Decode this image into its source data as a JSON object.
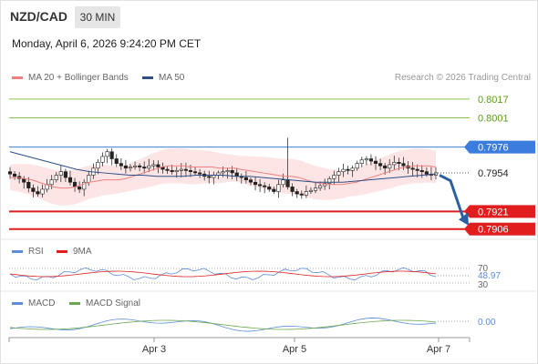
{
  "header": {
    "pair": "NZD/CAD",
    "timeframe": "30 MIN",
    "datetime": "Monday, April 6, 2026 9:24:20 PM CET"
  },
  "legend": {
    "ma20_bb": "MA 20 + Bollinger Bands",
    "ma50": "MA 50",
    "copyright": "Research © 2026 Trading Central",
    "rsi": "RSI",
    "ma9": "9MA",
    "macd": "MACD",
    "macd_signal": "MACD Signal"
  },
  "colors": {
    "ma20": "#f08080",
    "ma50": "#2c4f86",
    "bollinger_fill": "#fde0e0",
    "resistance_green": "#8bc34a",
    "pivot_blue": "#3b7ddd",
    "support_red": "#e11d1d",
    "arrow": "#2c5fa0",
    "rsi": "#5b8cd8",
    "macd": "#5b8cd8",
    "macd_signal": "#6aa84f"
  },
  "chart_data": {
    "type": "candlestick",
    "x_ticks": [
      "Apr 3",
      "Apr 5",
      "Apr 7"
    ],
    "price_range": [
      0.7898,
      0.8027
    ],
    "levels": [
      {
        "value": 0.8017,
        "label": "0.8017",
        "kind": "resistance",
        "color": "#8bc34a"
      },
      {
        "value": 0.8001,
        "label": "0.8001",
        "kind": "resistance",
        "color": "#8bc34a"
      },
      {
        "value": 0.7976,
        "label": "0.7976",
        "kind": "pivot",
        "color": "#3b7ddd"
      },
      {
        "value": 0.7954,
        "label": "0.7954",
        "kind": "last",
        "color": "#333333"
      },
      {
        "value": 0.7921,
        "label": "0.7921",
        "kind": "support",
        "color": "#e11d1d"
      },
      {
        "value": 0.7906,
        "label": "0.7906",
        "kind": "support",
        "color": "#e11d1d"
      }
    ],
    "close_series": [
      0.7953,
      0.7951,
      0.7949,
      0.7946,
      0.7941,
      0.7938,
      0.7936,
      0.794,
      0.7944,
      0.7948,
      0.7952,
      0.7955,
      0.795,
      0.7946,
      0.7942,
      0.794,
      0.7946,
      0.7952,
      0.7958,
      0.7963,
      0.7968,
      0.7972,
      0.7966,
      0.7962,
      0.796,
      0.7958,
      0.7959,
      0.796,
      0.7959,
      0.7958,
      0.796,
      0.7961,
      0.7959,
      0.7957,
      0.7956,
      0.7955,
      0.7956,
      0.7957,
      0.7956,
      0.7955,
      0.7954,
      0.7953,
      0.7951,
      0.795,
      0.7952,
      0.7954,
      0.7955,
      0.7956,
      0.7954,
      0.7951,
      0.795,
      0.7948,
      0.7946,
      0.7944,
      0.7943,
      0.7942,
      0.794,
      0.7938,
      0.7944,
      0.7948,
      0.7942,
      0.7938,
      0.7936,
      0.7935,
      0.7938,
      0.7939,
      0.7941,
      0.7943,
      0.7945,
      0.7949,
      0.7952,
      0.7955,
      0.7957,
      0.7956,
      0.7958,
      0.7962,
      0.7965,
      0.7966,
      0.7964,
      0.7962,
      0.796,
      0.7958,
      0.7961,
      0.7963,
      0.7962,
      0.796,
      0.7958,
      0.7957,
      0.7956,
      0.7955,
      0.7953,
      0.7952,
      0.7954
    ],
    "ma20": [
      0.795,
      0.795,
      0.7949,
      0.7948,
      0.7946,
      0.7944,
      0.7942,
      0.7941,
      0.7941,
      0.7942,
      0.7944,
      0.7946,
      0.7947,
      0.7948,
      0.7948,
      0.7948,
      0.7949,
      0.7951,
      0.7953,
      0.7955,
      0.7957,
      0.7959,
      0.796,
      0.796,
      0.796,
      0.7959,
      0.7959,
      0.7959,
      0.7959,
      0.7958,
      0.7958,
      0.7958,
      0.7957,
      0.7956,
      0.7955,
      0.7954,
      0.7953,
      0.7952,
      0.7951,
      0.7951,
      0.795,
      0.7948,
      0.7946,
      0.7945,
      0.7944,
      0.7944,
      0.7944,
      0.7945,
      0.7946,
      0.7948,
      0.795,
      0.7952,
      0.7954,
      0.7956,
      0.7958,
      0.7959,
      0.796,
      0.796,
      0.796,
      0.7959
    ],
    "ma50": [
      0.7972,
      0.7969,
      0.7966,
      0.7963,
      0.796,
      0.7957,
      0.7955,
      0.7954,
      0.7953,
      0.7952,
      0.7952,
      0.7951,
      0.7951,
      0.7951,
      0.7952,
      0.7952,
      0.7952,
      0.7951,
      0.7951,
      0.795,
      0.7949,
      0.7948,
      0.7947,
      0.7946,
      0.7946,
      0.7946,
      0.7947,
      0.7948,
      0.7949,
      0.795,
      0.7951,
      0.7952,
      0.7953
    ],
    "rsi": {
      "value": 48.97,
      "label": "48.97",
      "levels": [
        "70",
        "30"
      ]
    },
    "macd": {
      "value": 0.0,
      "label": "0.00"
    }
  }
}
